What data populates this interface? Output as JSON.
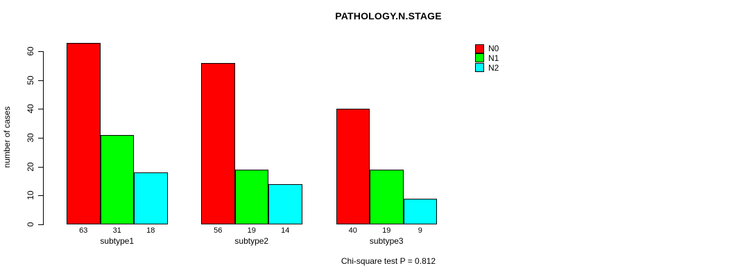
{
  "chart_data": {
    "type": "bar",
    "title": "PATHOLOGY.N.STAGE",
    "xlabel": "",
    "ylabel": "number of cases",
    "categories": [
      "subtype1",
      "subtype2",
      "subtype3"
    ],
    "series": [
      {
        "name": "N0",
        "color": "#FF0000",
        "values": [
          63,
          56,
          40
        ]
      },
      {
        "name": "N1",
        "color": "#00FF00",
        "values": [
          31,
          19,
          19
        ]
      },
      {
        "name": "N2",
        "color": "#00FFFF",
        "values": [
          18,
          14,
          9
        ]
      }
    ],
    "yticks": [
      0,
      10,
      20,
      30,
      40,
      50,
      60
    ],
    "ylim": [
      0,
      63
    ],
    "grid": false,
    "legend_position": "right",
    "bar_value_labels": true,
    "annotation": "Chi-square test P = 0.812"
  },
  "colors": {
    "background": "#FFFFFF",
    "axis": "#000000",
    "bar_border": "#000000",
    "text": "#000000"
  }
}
